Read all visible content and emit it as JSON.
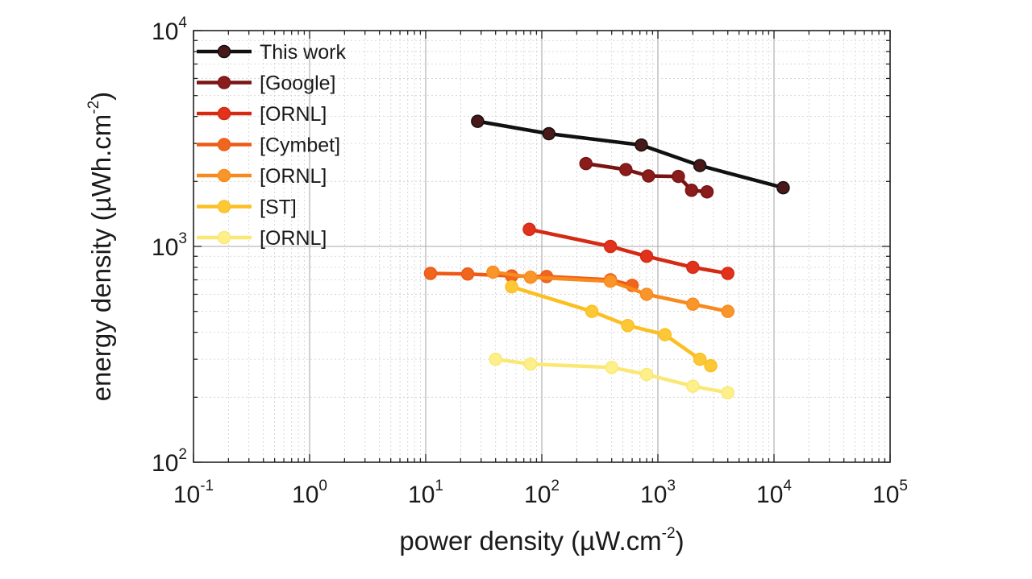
{
  "chart_data": {
    "type": "line",
    "xlabel": "power density (µW.cm-2)",
    "ylabel": "energy density (µWh.cm-2)",
    "x_label_parts": {
      "main": "power density (µW.cm",
      "sup": "-2",
      "close": ")"
    },
    "y_label_parts": {
      "main": "energy density (µWh.cm",
      "sup": "-2",
      "close": ")"
    },
    "x_scale": "log",
    "y_scale": "log",
    "xlim": [
      0.1,
      100000
    ],
    "ylim": [
      100,
      10000
    ],
    "x_ticks": [
      {
        "base": "10",
        "exp": "-1",
        "value": 0.1
      },
      {
        "base": "10",
        "exp": "0",
        "value": 1
      },
      {
        "base": "10",
        "exp": "1",
        "value": 10
      },
      {
        "base": "10",
        "exp": "2",
        "value": 100
      },
      {
        "base": "10",
        "exp": "3",
        "value": 1000
      },
      {
        "base": "10",
        "exp": "4",
        "value": 10000
      },
      {
        "base": "10",
        "exp": "5",
        "value": 100000
      }
    ],
    "y_ticks": [
      {
        "base": "10",
        "exp": "2",
        "value": 100
      },
      {
        "base": "10",
        "exp": "3",
        "value": 1000
      },
      {
        "base": "10",
        "exp": "4",
        "value": 10000
      }
    ],
    "grid": true,
    "legend_position": "top-left",
    "series": [
      {
        "name": "This work",
        "color": "#111111",
        "marker": "#4a1818",
        "x": [
          28,
          115,
          720,
          2300,
          12000
        ],
        "y": [
          3800,
          3330,
          2950,
          2370,
          1870
        ]
      },
      {
        "name": "[Google]",
        "color": "#7a1414",
        "marker": "#8a1c1c",
        "x": [
          240,
          530,
          830,
          1500,
          1950,
          2650
        ],
        "y": [
          2420,
          2270,
          2120,
          2110,
          1820,
          1790
        ]
      },
      {
        "name": "[ORNL]",
        "color": "#d42a14",
        "marker": "#e0321c",
        "x": [
          78,
          390,
          800,
          2000,
          4000
        ],
        "y": [
          1200,
          1000,
          900,
          800,
          750
        ]
      },
      {
        "name": "[Cymbet]",
        "color": "#ee5a16",
        "marker": "#f0661e",
        "x": [
          11,
          23,
          55,
          110,
          390,
          600
        ],
        "y": [
          750,
          745,
          730,
          725,
          700,
          660
        ]
      },
      {
        "name": "[ORNL]",
        "color": "#f78a1e",
        "marker": "#f9962a",
        "x": [
          38,
          80,
          390,
          800,
          2000,
          4000
        ],
        "y": [
          760,
          720,
          690,
          600,
          540,
          500
        ]
      },
      {
        "name": "[ST]",
        "color": "#fbbf22",
        "marker": "#fcc836",
        "x": [
          55,
          270,
          550,
          1150,
          2300,
          2850
        ],
        "y": [
          650,
          500,
          430,
          390,
          300,
          280
        ]
      },
      {
        "name": "[ORNL]",
        "color": "#fbe874",
        "marker": "#fdf08a",
        "x": [
          40,
          80,
          400,
          800,
          2000,
          4000
        ],
        "y": [
          300,
          285,
          275,
          255,
          225,
          210
        ]
      }
    ]
  }
}
